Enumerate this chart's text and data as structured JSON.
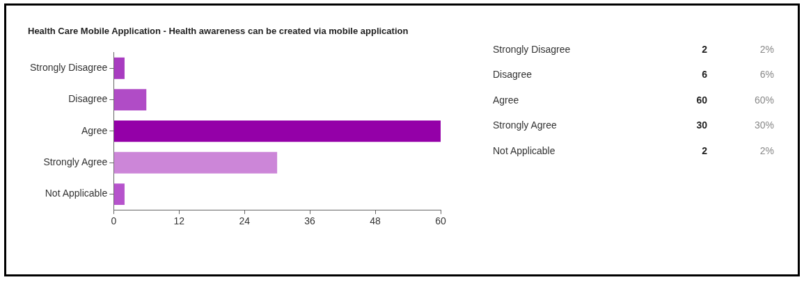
{
  "chart_data": {
    "type": "bar",
    "orientation": "horizontal",
    "title": "Health Care Mobile Application - Health awareness can be created via mobile application",
    "categories": [
      "Strongly Disagree",
      "Disagree",
      "Agree",
      "Strongly Agree",
      "Not Applicable"
    ],
    "values": [
      2,
      6,
      60,
      30,
      2
    ],
    "colors": [
      "#a83cc0",
      "#b04cc6",
      "#9400a8",
      "#cc86d8",
      "#b653cc"
    ],
    "xlim": [
      0,
      60
    ],
    "xticks": [
      0,
      12,
      24,
      36,
      48,
      60
    ],
    "grid": false,
    "legend": false,
    "annotations": [
      "2",
      "2%",
      "6",
      "6%",
      "60",
      "60%",
      "30",
      "30%",
      "2",
      "2%"
    ]
  }
}
